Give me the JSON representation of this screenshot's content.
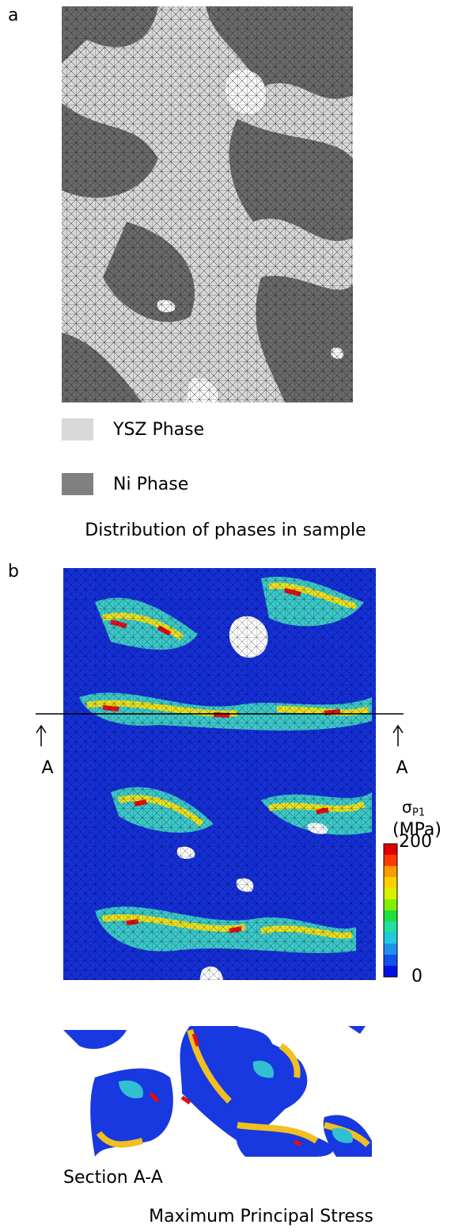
{
  "panel_a": {
    "label": "a",
    "legend": [
      "YSZ Phase",
      "Ni Phase"
    ],
    "caption": "Distribution of phases in sample"
  },
  "panel_b": {
    "label": "b",
    "section_marks": [
      "A",
      "A"
    ],
    "colorbar": {
      "symbol": "σ",
      "subscript": "P1",
      "unit": "(MPa)",
      "max": 200,
      "min": 0
    },
    "section_caption": "Section A-A",
    "caption": "Maximum Principal Stress"
  }
}
